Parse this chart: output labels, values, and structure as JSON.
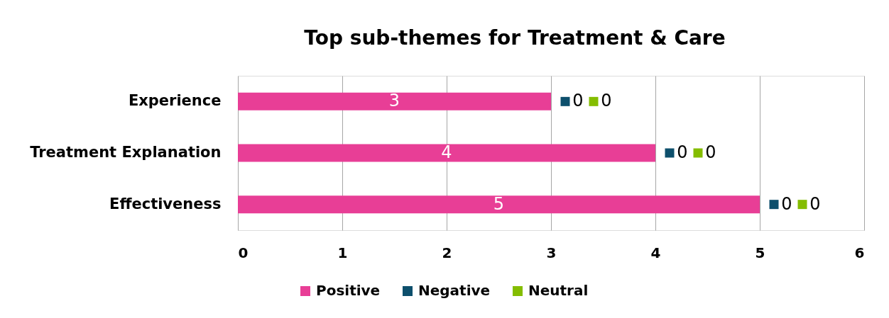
{
  "chart_data": {
    "type": "bar",
    "orientation": "horizontal",
    "stacked": true,
    "title": "Top sub-themes for Treatment & Care",
    "categories": [
      "Experience",
      "Treatment Explanation",
      "Effectiveness"
    ],
    "series": [
      {
        "name": "Positive",
        "color": "#e83e96",
        "values": [
          3,
          4,
          5
        ]
      },
      {
        "name": "Negative",
        "color": "#0d4f6c",
        "values": [
          0,
          0,
          0
        ]
      },
      {
        "name": "Neutral",
        "color": "#84bd00",
        "values": [
          0,
          0,
          0
        ]
      }
    ],
    "xlim": [
      0,
      6
    ],
    "xticks": [
      0,
      1,
      2,
      3,
      4,
      5,
      6
    ],
    "grid": "x",
    "legend": "bottom",
    "data_labels": true
  }
}
